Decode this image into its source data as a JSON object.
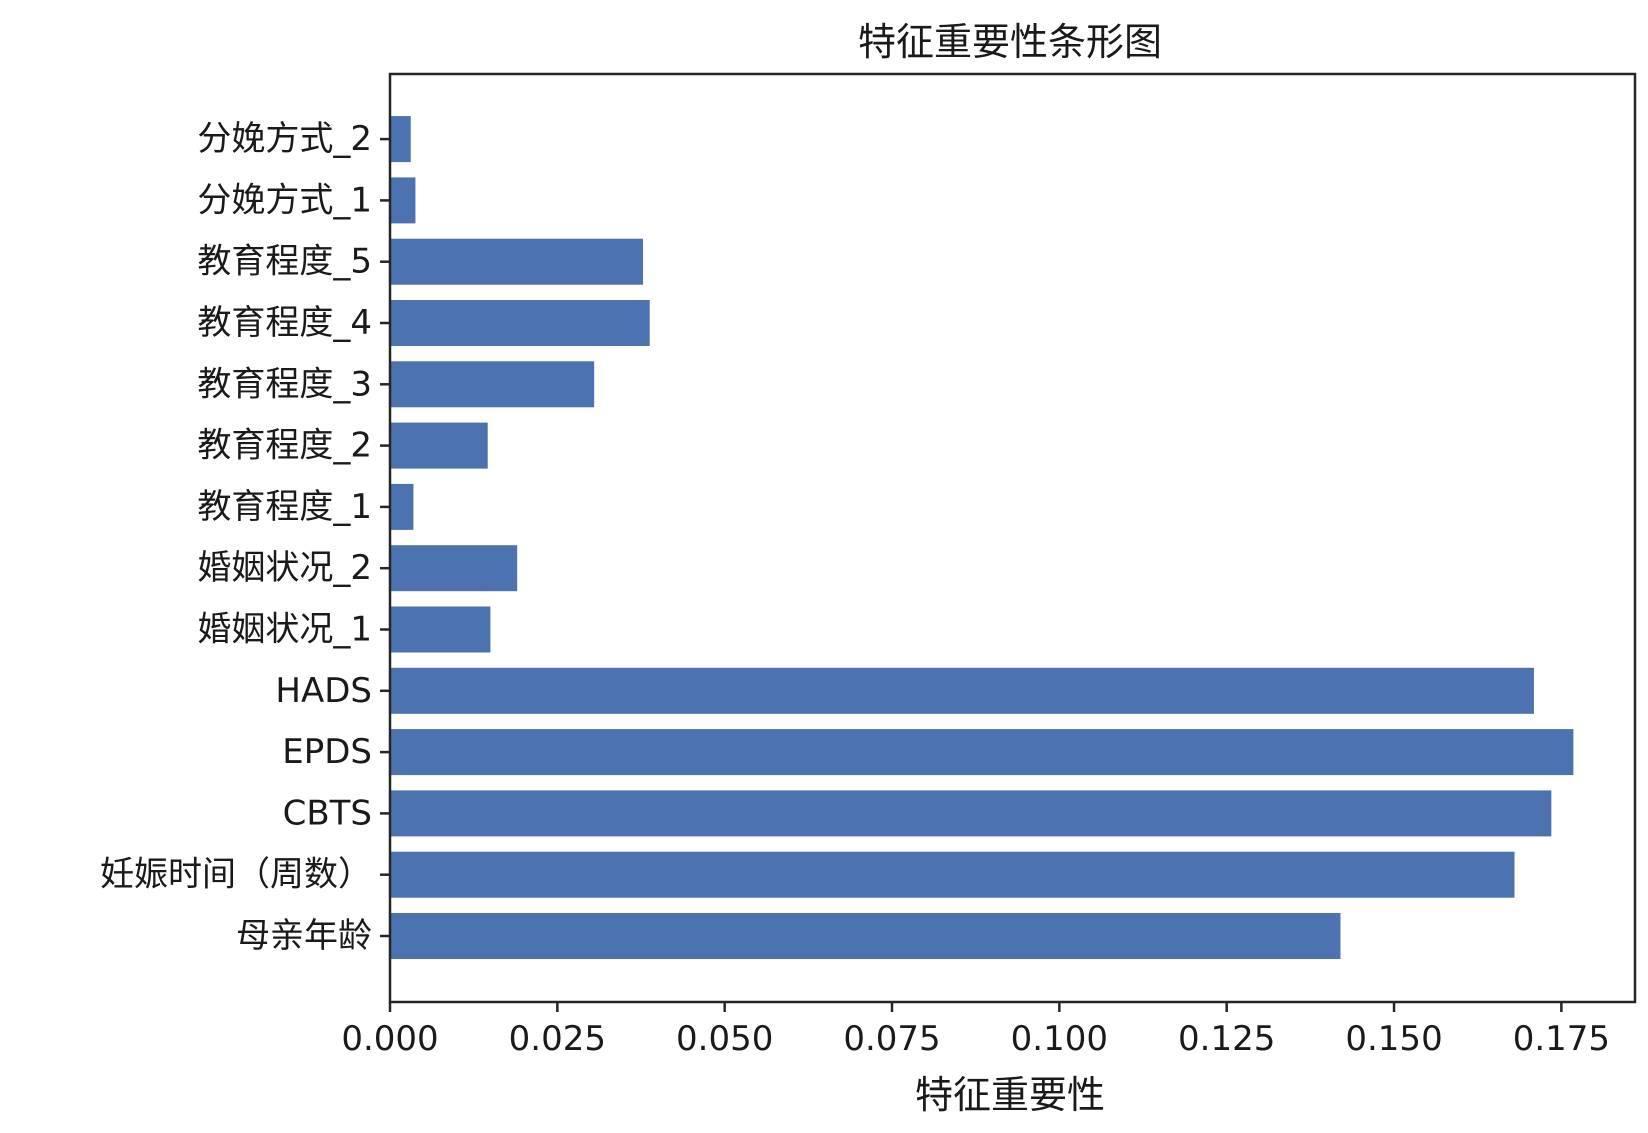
{
  "chart_data": {
    "type": "bar",
    "orientation": "horizontal",
    "title": "特征重要性条形图",
    "xlabel": "特征重要性",
    "ylabel": "",
    "categories": [
      "母亲年龄",
      "妊娠时间（周数）",
      "CBTS",
      "EPDS",
      "HADS",
      "婚姻状况_1",
      "婚姻状况_2",
      "教育程度_1",
      "教育程度_2",
      "教育程度_3",
      "教育程度_4",
      "教育程度_5",
      "分娩方式_1",
      "分娩方式_2"
    ],
    "values": [
      0.142,
      0.168,
      0.1735,
      0.1768,
      0.1709,
      0.015,
      0.019,
      0.0035,
      0.0146,
      0.0305,
      0.0388,
      0.0378,
      0.0038,
      0.0031
    ],
    "xlim": [
      0,
      0.186
    ],
    "xticks": [
      0.0,
      0.025,
      0.05,
      0.075,
      0.1,
      0.125,
      0.15,
      0.175
    ],
    "xtick_labels": [
      "0.000",
      "0.025",
      "0.050",
      "0.075",
      "0.100",
      "0.125",
      "0.150",
      "0.175"
    ],
    "grid": false,
    "legend": "none",
    "colors": {
      "bar": "#4c72b0",
      "axes": "#262626",
      "background": "#ffffff"
    }
  }
}
